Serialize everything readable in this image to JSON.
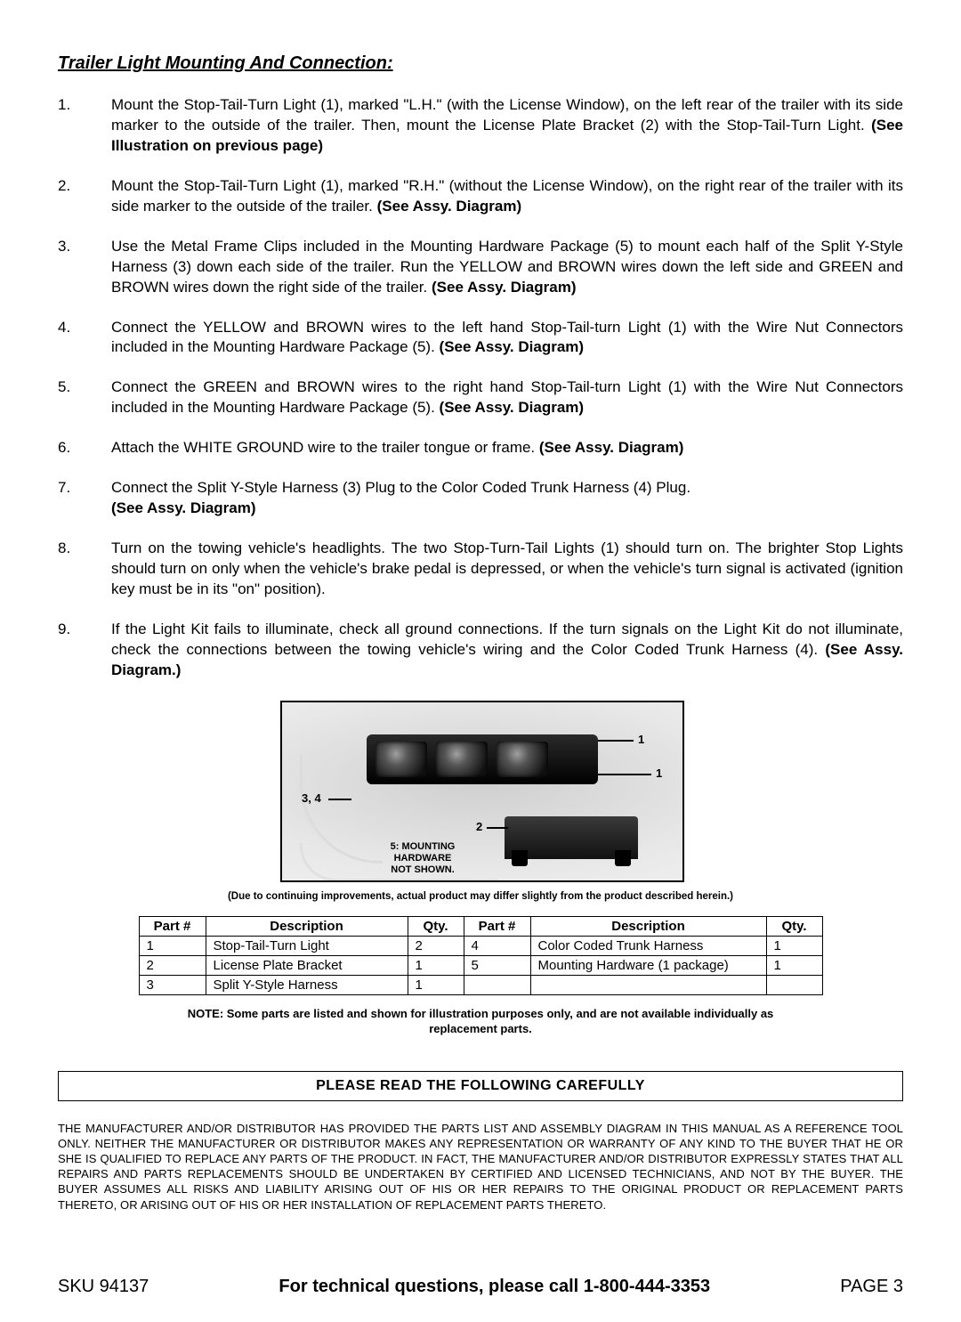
{
  "title": "Trailer Light Mounting And Connection:",
  "steps": [
    {
      "num": "1.",
      "text": "Mount the  Stop-Tail-Turn Light (1), marked \"L.H.\" (with the License Window), on the left rear of the trailer with its side marker to the outside of the trailer.  Then, mount the License Plate Bracket (2) with the Stop-Tail-Turn Light.  ",
      "bold": "(See Illustration on previous page)"
    },
    {
      "num": "2.",
      "text": "Mount the Stop-Tail-Turn Light (1), marked \"R.H.\" (without the License Window), on the right rear of the trailer with its side marker to the outside of the trailer.  ",
      "bold": "(See Assy. Diagram)"
    },
    {
      "num": "3.",
      "text": "Use the Metal Frame Clips included in the Mounting Hardware Package (5) to mount each half of the Split Y-Style Harness (3) down each side of the trailer.  Run the YELLOW and BROWN wires down the left side and GREEN and BROWN wires down the right side of the trailer.  ",
      "bold": "(See Assy. Diagram)"
    },
    {
      "num": "4.",
      "text": "Connect the YELLOW and BROWN wires to the left hand Stop-Tail-turn Light (1) with the Wire Nut Connectors included in the Mounting Hardware Package (5).  ",
      "bold": "(See Assy. Diagram)"
    },
    {
      "num": "5.",
      "text": "Connect the GREEN and BROWN wires to the right hand Stop-Tail-turn Light (1) with the Wire Nut Connectors included in the Mounting Hardware Package (5).  ",
      "bold": "(See Assy. Diagram)"
    },
    {
      "num": "6.",
      "text": "Attach the WHITE GROUND wire to the trailer tongue or frame.  ",
      "bold": "(See Assy. Diagram)"
    },
    {
      "num": "7.",
      "text": "Connect the Split Y-Style Harness (3) Plug to the Color Coded Trunk Harness (4) Plug. ",
      "bold": "(See Assy. Diagram)"
    },
    {
      "num": "8.",
      "text": "Turn on the towing vehicle's headlights.  The two Stop-Turn-Tail Lights (1) should turn on.  The brighter Stop Lights should turn on only when the vehicle's brake pedal is depressed, or when the vehicle's turn signal is activated (ignition key must be in its \"on\" position).",
      "bold": ""
    },
    {
      "num": "9.",
      "text": "If the Light Kit fails to illuminate, check all ground connections.  If the turn signals on the Light Kit do not illuminate, check the connections between the towing vehicle's wiring and the Color Coded Trunk Harness (4).  ",
      "bold": "(See Assy. Diagram.)"
    }
  ],
  "diagram": {
    "callout_1_top": "1",
    "callout_1_right": "1",
    "callout_34": "3, 4",
    "callout_2": "2",
    "hw_note_line1": "5: MOUNTING HARDWARE",
    "hw_note_line2": "NOT SHOWN."
  },
  "caption_small": "(Due to continuing improvements, actual product may differ slightly from the product described herein.)",
  "parts_table": {
    "headers": [
      "Part #",
      "Description",
      "Qty.",
      "Part #",
      "Description",
      "Qty."
    ],
    "rows": [
      [
        "1",
        "Stop-Tail-Turn Light",
        "2",
        "4",
        "Color Coded Trunk Harness",
        "1"
      ],
      [
        "2",
        "License Plate Bracket",
        "1",
        "5",
        "Mounting Hardware (1 package)",
        "1"
      ],
      [
        "3",
        "Split Y-Style Harness",
        "1",
        "",
        "",
        ""
      ]
    ],
    "col_widths": [
      "58px",
      "210px",
      "46px",
      "58px",
      "248px",
      "46px"
    ]
  },
  "table_note": "NOTE:  Some parts are listed and shown for illustration purposes only, and are not available individually as replacement parts.",
  "read_box": "PLEASE READ THE FOLLOWING CAREFULLY",
  "disclaimer": "THE MANUFACTURER AND/OR DISTRIBUTOR HAS PROVIDED THE PARTS LIST AND ASSEMBLY DIAGRAM IN THIS MANUAL AS A REFERENCE TOOL ONLY.  NEITHER THE MANUFACTURER OR DISTRIBUTOR MAKES ANY REPRESENTATION OR WARRANTY OF ANY KIND TO THE BUYER THAT HE OR SHE IS QUALIFIED TO REPLACE ANY PARTS OF THE PRODUCT.  IN FACT, THE MANUFACTURER AND/OR DISTRIBUTOR EXPRESSLY STATES THAT ALL REPAIRS AND PARTS REPLACEMENTS SHOULD BE UNDERTAKEN BY CERTIFIED AND LICENSED TECHNICIANS, AND NOT BY THE BUYER.  THE BUYER ASSUMES ALL RISKS AND LIABILITY ARISING OUT OF HIS OR HER REPAIRS TO THE ORIGINAL PRODUCT OR REPLACEMENT PARTS THERETO, OR ARISING OUT OF HIS OR HER INSTALLATION OF REPLACEMENT PARTS THERETO.",
  "footer": {
    "sku": "SKU 94137",
    "mid": "For technical questions, please call 1-800-444-3353",
    "page": "PAGE 3"
  }
}
